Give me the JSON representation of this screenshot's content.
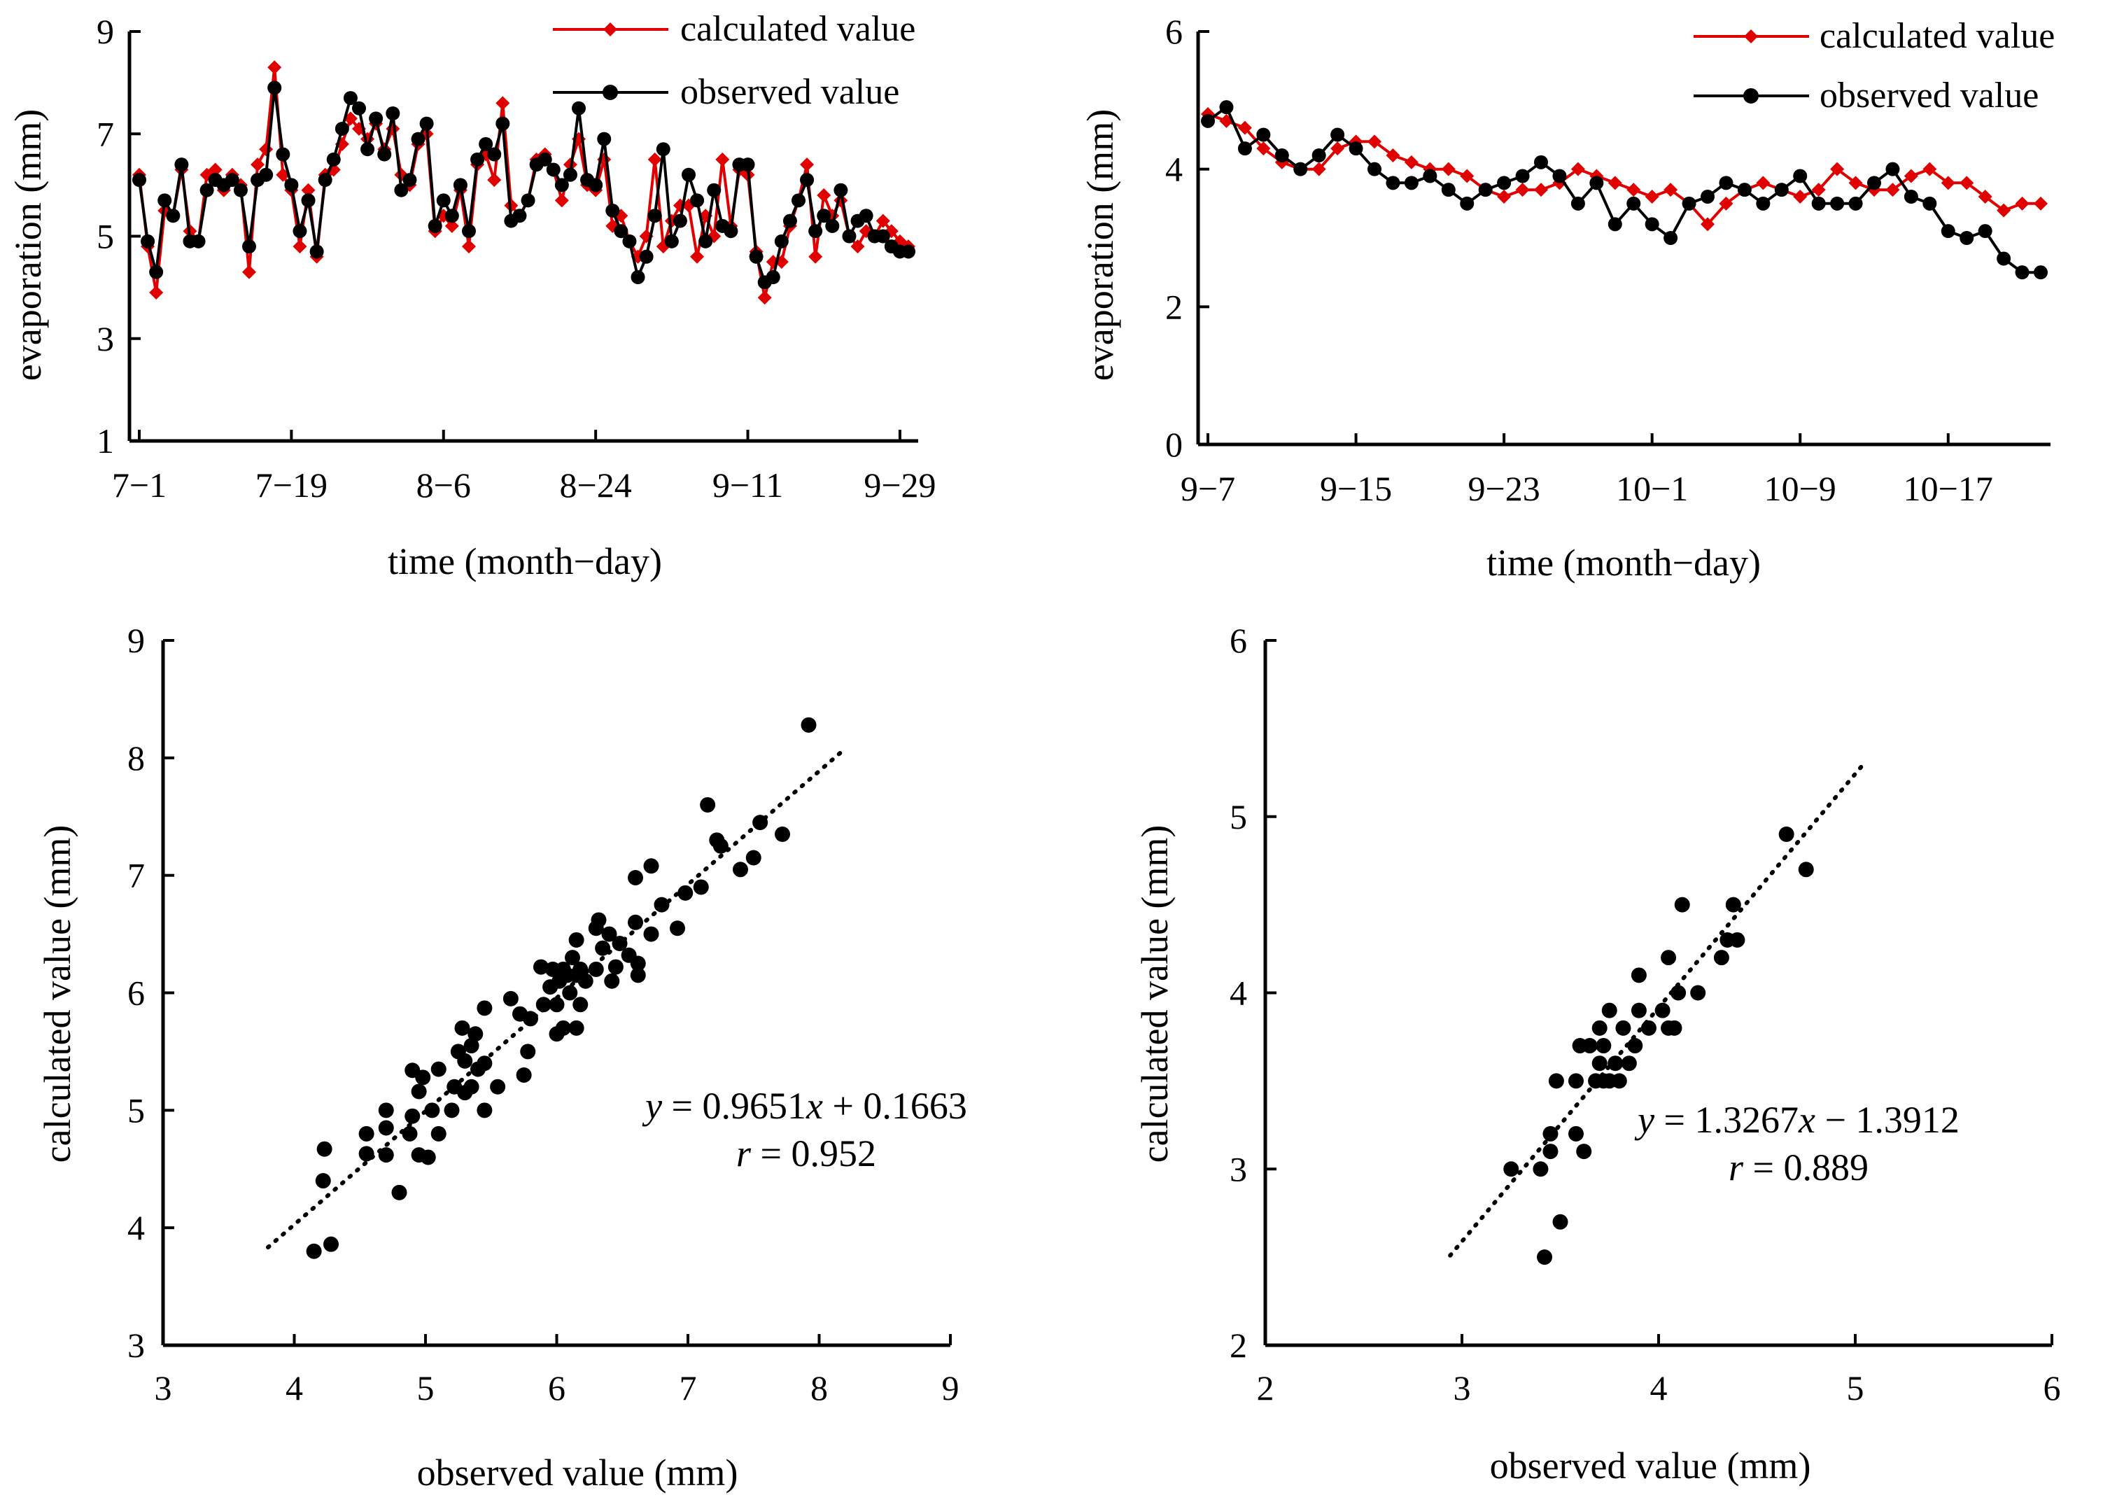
{
  "chart_data": [
    {
      "id": "ts1",
      "type": "line",
      "xlabel": "time (month−day)",
      "ylabel": "evaporation (mm)",
      "ylim": [
        1,
        9
      ],
      "yticks": [
        "1",
        "3",
        "5",
        "7",
        "9"
      ],
      "xtick_labels": [
        "7−1",
        "7−19",
        "8−6",
        "8−24",
        "9−11",
        "9−29"
      ],
      "xtick_index": [
        0,
        18,
        36,
        54,
        72,
        90
      ],
      "n_points": 92,
      "legend": [
        "calculated value",
        "observed value"
      ],
      "series": [
        {
          "name": "calculated value",
          "color": "#e00000",
          "marker": "diamond",
          "values": [
            6.2,
            4.8,
            3.9,
            5.5,
            5.4,
            6.3,
            5.1,
            4.9,
            6.2,
            6.3,
            5.9,
            6.2,
            6.0,
            4.3,
            6.4,
            6.7,
            8.3,
            6.2,
            5.9,
            4.8,
            5.9,
            4.6,
            6.2,
            6.3,
            6.8,
            7.3,
            7.1,
            6.9,
            7.2,
            6.7,
            7.1,
            6.2,
            6.0,
            6.8,
            7.0,
            5.1,
            5.4,
            5.2,
            5.9,
            4.8,
            6.4,
            6.6,
            6.1,
            7.6,
            5.6,
            5.4,
            5.7,
            6.5,
            6.6,
            6.3,
            5.7,
            6.4,
            6.9,
            6.0,
            5.9,
            6.5,
            5.2,
            5.4,
            4.9,
            4.6,
            5.0,
            6.5,
            4.8,
            5.3,
            5.6,
            5.6,
            4.6,
            5.4,
            5.0,
            6.5,
            5.2,
            6.3,
            6.2,
            4.7,
            3.8,
            4.5,
            4.5,
            5.2,
            5.7,
            6.4,
            4.6,
            5.8,
            5.4,
            5.7,
            5.0,
            4.8,
            5.1,
            5.0,
            5.3,
            5.1,
            4.9,
            4.8
          ]
        },
        {
          "name": "observed value",
          "color": "#000000",
          "marker": "circle",
          "values": [
            6.1,
            4.9,
            4.3,
            5.7,
            5.4,
            6.4,
            4.9,
            4.9,
            5.9,
            6.1,
            6.0,
            6.1,
            5.9,
            4.8,
            6.1,
            6.2,
            7.9,
            6.6,
            6.0,
            5.1,
            5.7,
            4.7,
            6.1,
            6.5,
            7.1,
            7.7,
            7.5,
            6.7,
            7.3,
            6.6,
            7.4,
            5.9,
            6.1,
            6.9,
            7.2,
            5.2,
            5.7,
            5.4,
            6.0,
            5.1,
            6.5,
            6.8,
            6.6,
            7.2,
            5.3,
            5.4,
            5.7,
            6.4,
            6.5,
            6.3,
            6.0,
            6.2,
            7.5,
            6.1,
            6.0,
            6.9,
            5.5,
            5.1,
            4.9,
            4.2,
            4.6,
            5.4,
            6.7,
            4.9,
            5.3,
            6.2,
            5.7,
            4.9,
            5.9,
            5.2,
            5.1,
            6.4,
            6.4,
            4.6,
            4.1,
            4.2,
            4.9,
            5.3,
            5.7,
            6.1,
            5.1,
            5.4,
            5.2,
            5.9,
            5.0,
            5.3,
            5.4,
            5.0,
            5.0,
            4.8,
            4.7,
            4.7
          ]
        }
      ]
    },
    {
      "id": "ts2",
      "type": "line",
      "xlabel": "time (month−day)",
      "ylabel": "evaporation (mm)",
      "ylim": [
        0,
        6
      ],
      "yticks": [
        "0",
        "2",
        "4",
        "6"
      ],
      "xtick_labels": [
        "9−7",
        "9−15",
        "9−23",
        "10−1",
        "10−9",
        "10−17"
      ],
      "xtick_index": [
        0,
        8,
        16,
        24,
        32,
        40
      ],
      "n_points": 46,
      "legend": [
        "calculated value",
        "observed value"
      ],
      "series": [
        {
          "name": "calculated value",
          "color": "#e00000",
          "marker": "diamond",
          "values": [
            4.8,
            4.7,
            4.6,
            4.3,
            4.1,
            4.0,
            4.0,
            4.3,
            4.4,
            4.4,
            4.2,
            4.1,
            4.0,
            4.0,
            3.9,
            3.7,
            3.6,
            3.7,
            3.7,
            3.8,
            4.0,
            3.9,
            3.8,
            3.7,
            3.6,
            3.7,
            3.5,
            3.2,
            3.5,
            3.7,
            3.8,
            3.7,
            3.6,
            3.7,
            4.0,
            3.8,
            3.7,
            3.7,
            3.9,
            4.0,
            3.8,
            3.8,
            3.6,
            3.4,
            3.5,
            3.5
          ]
        },
        {
          "name": "observed value",
          "color": "#000000",
          "marker": "circle",
          "values": [
            4.7,
            4.9,
            4.3,
            4.5,
            4.2,
            4.0,
            4.2,
            4.5,
            4.3,
            4.0,
            3.8,
            3.8,
            3.9,
            3.7,
            3.5,
            3.7,
            3.8,
            3.9,
            4.1,
            3.9,
            3.5,
            3.8,
            3.2,
            3.5,
            3.2,
            3.0,
            3.5,
            3.6,
            3.8,
            3.7,
            3.5,
            3.7,
            3.9,
            3.5,
            3.5,
            3.5,
            3.8,
            4.0,
            3.6,
            3.5,
            3.1,
            3.0,
            3.1,
            2.7,
            2.5,
            2.5
          ]
        }
      ]
    },
    {
      "id": "sc1",
      "type": "scatter",
      "xlabel": "observed value (mm)",
      "ylabel": "calculated value (mm)",
      "xlim": [
        3,
        9
      ],
      "ylim": [
        3,
        9
      ],
      "xticks": [
        "3",
        "4",
        "5",
        "6",
        "7",
        "8",
        "9"
      ],
      "yticks": [
        "3",
        "4",
        "5",
        "6",
        "7",
        "8",
        "9"
      ],
      "trendline": {
        "slope": 0.9651,
        "intercept": 0.1663,
        "x_range": [
          3.8,
          8.2
        ]
      },
      "equation": {
        "y_var": "y",
        "eq": " = 0.9651",
        "x_var": "x",
        "rest": " + 0.1663",
        "r_var": "r",
        "r_rest": " = 0.952"
      },
      "points": [
        [
          4.15,
          3.8
        ],
        [
          4.28,
          3.86
        ],
        [
          4.22,
          4.4
        ],
        [
          4.23,
          4.67
        ],
        [
          4.55,
          4.63
        ],
        [
          4.55,
          4.8
        ],
        [
          4.7,
          4.62
        ],
        [
          4.7,
          4.85
        ],
        [
          4.7,
          5.0
        ],
        [
          4.8,
          4.3
        ],
        [
          4.88,
          4.8
        ],
        [
          4.9,
          4.95
        ],
        [
          4.9,
          5.34
        ],
        [
          4.95,
          4.62
        ],
        [
          4.95,
          5.16
        ],
        [
          4.98,
          5.28
        ],
        [
          5.02,
          4.6
        ],
        [
          5.05,
          5.0
        ],
        [
          5.1,
          4.8
        ],
        [
          5.1,
          5.35
        ],
        [
          5.2,
          5.0
        ],
        [
          5.22,
          5.2
        ],
        [
          5.25,
          5.5
        ],
        [
          5.28,
          5.7
        ],
        [
          5.3,
          5.15
        ],
        [
          5.3,
          5.42
        ],
        [
          5.35,
          5.2
        ],
        [
          5.35,
          5.55
        ],
        [
          5.38,
          5.65
        ],
        [
          5.4,
          5.35
        ],
        [
          5.45,
          5.0
        ],
        [
          5.45,
          5.4
        ],
        [
          5.45,
          5.87
        ],
        [
          5.55,
          5.2
        ],
        [
          5.65,
          5.95
        ],
        [
          5.72,
          5.82
        ],
        [
          5.75,
          5.3
        ],
        [
          5.78,
          5.5
        ],
        [
          5.8,
          5.78
        ],
        [
          5.88,
          6.22
        ],
        [
          5.9,
          5.9
        ],
        [
          5.95,
          6.05
        ],
        [
          5.97,
          6.2
        ],
        [
          6.0,
          5.65
        ],
        [
          6.0,
          5.9
        ],
        [
          6.02,
          6.1
        ],
        [
          6.05,
          5.7
        ],
        [
          6.05,
          6.2
        ],
        [
          6.08,
          6.15
        ],
        [
          6.1,
          6.0
        ],
        [
          6.12,
          6.3
        ],
        [
          6.15,
          5.7
        ],
        [
          6.15,
          6.15
        ],
        [
          6.15,
          6.45
        ],
        [
          6.18,
          5.9
        ],
        [
          6.18,
          6.2
        ],
        [
          6.22,
          6.1
        ],
        [
          6.3,
          6.2
        ],
        [
          6.3,
          6.55
        ],
        [
          6.32,
          6.62
        ],
        [
          6.35,
          6.38
        ],
        [
          6.4,
          6.5
        ],
        [
          6.42,
          6.1
        ],
        [
          6.45,
          6.22
        ],
        [
          6.48,
          6.42
        ],
        [
          6.55,
          6.32
        ],
        [
          6.6,
          6.6
        ],
        [
          6.6,
          6.98
        ],
        [
          6.62,
          6.15
        ],
        [
          6.62,
          6.25
        ],
        [
          6.72,
          6.5
        ],
        [
          6.72,
          7.08
        ],
        [
          6.8,
          6.75
        ],
        [
          6.92,
          6.55
        ],
        [
          6.98,
          6.85
        ],
        [
          7.1,
          6.9
        ],
        [
          7.15,
          7.6
        ],
        [
          7.22,
          7.3
        ],
        [
          7.25,
          7.25
        ],
        [
          7.4,
          7.05
        ],
        [
          7.5,
          7.15
        ],
        [
          7.55,
          7.45
        ],
        [
          7.72,
          7.35
        ],
        [
          7.92,
          8.28
        ]
      ]
    },
    {
      "id": "sc2",
      "type": "scatter",
      "xlabel": "observed value (mm)",
      "ylabel": "calculated value (mm)",
      "xlim": [
        2,
        6
      ],
      "ylim": [
        2,
        6
      ],
      "xticks": [
        "2",
        "3",
        "4",
        "5",
        "6"
      ],
      "yticks": [
        "2",
        "3",
        "4",
        "5",
        "6"
      ],
      "trendline": {
        "slope": 1.3267,
        "intercept": -1.3912,
        "x_range": [
          2.94,
          5.05
        ]
      },
      "equation": {
        "y_var": "y",
        "eq": " = 1.3267",
        "x_var": "x",
        "rest": " − 1.3912",
        "r_var": "r",
        "r_rest": " = 0.889"
      },
      "points": [
        [
          3.25,
          3.0
        ],
        [
          3.4,
          3.0
        ],
        [
          3.42,
          2.5
        ],
        [
          3.45,
          3.1
        ],
        [
          3.45,
          3.2
        ],
        [
          3.48,
          3.5
        ],
        [
          3.5,
          2.7
        ],
        [
          3.58,
          3.2
        ],
        [
          3.58,
          3.5
        ],
        [
          3.6,
          3.7
        ],
        [
          3.62,
          3.1
        ],
        [
          3.65,
          3.7
        ],
        [
          3.68,
          3.5
        ],
        [
          3.7,
          3.6
        ],
        [
          3.7,
          3.8
        ],
        [
          3.72,
          3.5
        ],
        [
          3.72,
          3.7
        ],
        [
          3.75,
          3.5
        ],
        [
          3.75,
          3.9
        ],
        [
          3.78,
          3.6
        ],
        [
          3.8,
          3.5
        ],
        [
          3.82,
          3.8
        ],
        [
          3.85,
          3.6
        ],
        [
          3.88,
          3.7
        ],
        [
          3.9,
          3.9
        ],
        [
          3.9,
          4.1
        ],
        [
          3.95,
          3.8
        ],
        [
          4.02,
          3.9
        ],
        [
          4.05,
          3.8
        ],
        [
          4.05,
          4.2
        ],
        [
          4.08,
          3.8
        ],
        [
          4.1,
          4.0
        ],
        [
          4.12,
          4.5
        ],
        [
          4.2,
          4.0
        ],
        [
          4.32,
          4.2
        ],
        [
          4.35,
          4.3
        ],
        [
          4.38,
          4.5
        ],
        [
          4.4,
          4.3
        ],
        [
          4.65,
          4.9
        ],
        [
          4.75,
          4.7
        ]
      ]
    }
  ]
}
